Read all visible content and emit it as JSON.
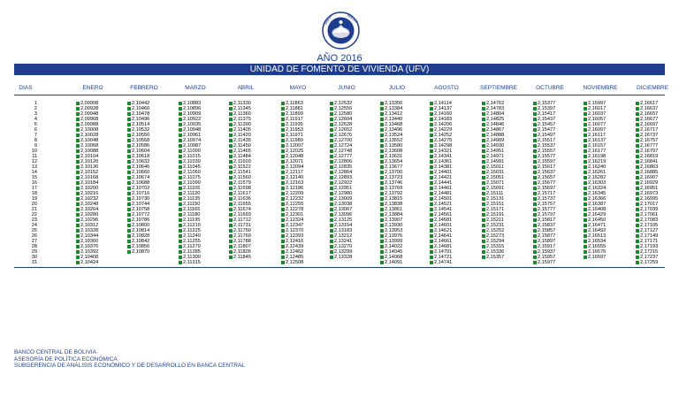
{
  "seal_text": "BANCO CENTRAL DE BOLIVIA",
  "year_title": "AÑO 2016",
  "banner_title": "UNIDAD DE FOMENTO DE VIVIENDA (UFV)",
  "header": [
    "DIAS",
    "ENERO",
    "FEBRERO",
    "MARZO",
    "ABRIL",
    "MAYO",
    "JUNIO",
    "JULIO",
    "AGOSTO",
    "SEPTIEMBRE",
    "OCTUBRE",
    "NOVIEMBRE",
    "DICIEMBRE"
  ],
  "rows": [
    [
      "1",
      "2,09908",
      "2,10442",
      "2,10883",
      "2,11330",
      "2,11863",
      "2,12532",
      "2,13356",
      "2,14114",
      "2,14762",
      "2,15377",
      "2,15997",
      "2,16617"
    ],
    [
      "2",
      "2,09928",
      "2,10460",
      "2,10896",
      "2,11345",
      "2,11881",
      "2,12556",
      "2,13384",
      "2,14137",
      "2,14783",
      "2,15397",
      "2,16017",
      "2,16637"
    ],
    [
      "3",
      "2,09948",
      "2,10478",
      "2,10909",
      "2,11360",
      "2,11899",
      "2,12580",
      "2,13412",
      "2,14160",
      "2,14804",
      "2,15417",
      "2,16037",
      "2,16657"
    ],
    [
      "4",
      "2,09968",
      "2,10496",
      "2,10922",
      "2,11375",
      "2,11917",
      "2,12604",
      "2,13440",
      "2,14183",
      "2,14825",
      "2,15437",
      "2,16057",
      "2,16677"
    ],
    [
      "5",
      "2,09988",
      "2,10514",
      "2,10935",
      "2,11390",
      "2,11935",
      "2,12628",
      "2,13468",
      "2,14206",
      "2,14846",
      "2,15457",
      "2,16077",
      "2,16697"
    ],
    [
      "6",
      "2,10008",
      "2,10532",
      "2,10948",
      "2,11405",
      "2,11953",
      "2,12652",
      "2,13496",
      "2,14229",
      "2,14867",
      "2,15477",
      "2,16097",
      "2,16717"
    ],
    [
      "7",
      "2,10028",
      "2,10550",
      "2,10961",
      "2,11420",
      "2,11971",
      "2,12676",
      "2,13524",
      "2,14252",
      "2,14888",
      "2,15497",
      "2,16117",
      "2,16737"
    ],
    [
      "8",
      "2,10048",
      "2,10568",
      "2,10974",
      "2,11435",
      "2,11989",
      "2,12700",
      "2,13552",
      "2,14275",
      "2,14909",
      "2,15517",
      "2,16137",
      "2,16757"
    ],
    [
      "9",
      "2,10068",
      "2,10586",
      "2,10987",
      "2,11450",
      "2,12007",
      "2,12724",
      "2,13580",
      "2,14298",
      "2,14930",
      "2,15537",
      "2,16157",
      "2,16777"
    ],
    [
      "10",
      "2,10088",
      "2,10604",
      "2,11000",
      "2,11465",
      "2,12025",
      "2,12748",
      "2,13608",
      "2,14321",
      "2,14951",
      "2,15557",
      "2,16177",
      "2,16797"
    ],
    [
      "11",
      "2,10104",
      "2,10618",
      "2,11015",
      "2,11484",
      "2,12048",
      "2,12777",
      "2,13631",
      "2,14341",
      "2,14971",
      "2,15577",
      "2,16198",
      "2,16819"
    ],
    [
      "12",
      "2,10120",
      "2,10632",
      "2,11030",
      "2,11503",
      "2,12071",
      "2,12806",
      "2,13654",
      "2,14361",
      "2,14991",
      "2,15597",
      "2,16219",
      "2,16841"
    ],
    [
      "13",
      "2,10136",
      "2,10646",
      "2,11045",
      "2,11522",
      "2,12094",
      "2,12835",
      "2,13677",
      "2,14381",
      "2,15011",
      "2,15617",
      "2,16240",
      "2,16863"
    ],
    [
      "14",
      "2,10152",
      "2,10660",
      "2,11060",
      "2,11541",
      "2,12117",
      "2,12864",
      "2,13700",
      "2,14401",
      "2,15031",
      "2,15637",
      "2,16261",
      "2,16885"
    ],
    [
      "15",
      "2,10168",
      "2,10674",
      "2,11075",
      "2,11560",
      "2,12140",
      "2,12893",
      "2,13723",
      "2,14421",
      "2,15051",
      "2,15657",
      "2,16282",
      "2,16907"
    ],
    [
      "16",
      "2,10184",
      "2,10688",
      "2,11090",
      "2,11579",
      "2,12163",
      "2,12922",
      "2,13746",
      "2,14441",
      "2,15071",
      "2,15677",
      "2,16303",
      "2,16929"
    ],
    [
      "17",
      "2,10200",
      "2,10702",
      "2,11105",
      "2,11598",
      "2,12186",
      "2,12951",
      "2,13769",
      "2,14461",
      "2,15091",
      "2,15697",
      "2,16324",
      "2,16951"
    ],
    [
      "18",
      "2,10216",
      "2,10716",
      "2,11120",
      "2,11617",
      "2,12209",
      "2,12980",
      "2,13792",
      "2,14481",
      "2,15111",
      "2,15717",
      "2,16345",
      "2,16973"
    ],
    [
      "19",
      "2,10232",
      "2,10730",
      "2,11135",
      "2,11636",
      "2,12232",
      "2,13009",
      "2,13815",
      "2,14501",
      "2,15131",
      "2,15737",
      "2,16366",
      "2,16995"
    ],
    [
      "20",
      "2,10248",
      "2,10744",
      "2,11150",
      "2,11655",
      "2,12255",
      "2,13038",
      "2,13838",
      "2,14521",
      "2,15151",
      "2,15757",
      "2,16387",
      "2,17017"
    ],
    [
      "21",
      "2,10264",
      "2,10758",
      "2,11165",
      "2,11674",
      "2,12278",
      "2,13067",
      "2,13861",
      "2,14541",
      "2,15171",
      "2,15777",
      "2,16408",
      "2,17039"
    ],
    [
      "22",
      "2,10280",
      "2,10772",
      "2,11180",
      "2,11693",
      "2,12301",
      "2,13096",
      "2,13884",
      "2,14561",
      "2,15191",
      "2,15797",
      "2,16429",
      "2,17061"
    ],
    [
      "23",
      "2,10296",
      "2,10786",
      "2,11195",
      "2,11712",
      "2,12324",
      "2,13125",
      "2,13907",
      "2,14581",
      "2,15211",
      "2,15817",
      "2,16450",
      "2,17083"
    ],
    [
      "24",
      "2,10312",
      "2,10800",
      "2,11210",
      "2,11731",
      "2,12347",
      "2,13154",
      "2,13930",
      "2,14601",
      "2,15231",
      "2,15837",
      "2,16471",
      "2,17105"
    ],
    [
      "25",
      "2,10328",
      "2,10814",
      "2,11225",
      "2,11750",
      "2,12370",
      "2,13183",
      "2,13953",
      "2,14621",
      "2,15252",
      "2,15857",
      "2,16492",
      "2,17127"
    ],
    [
      "26",
      "2,10344",
      "2,10828",
      "2,11240",
      "2,11769",
      "2,12393",
      "2,13212",
      "2,13976",
      "2,14641",
      "2,15273",
      "2,15877",
      "2,16513",
      "2,17149"
    ],
    [
      "27",
      "2,10360",
      "2,10842",
      "2,11255",
      "2,11788",
      "2,12416",
      "2,13241",
      "2,13999",
      "2,14661",
      "2,15294",
      "2,15897",
      "2,16534",
      "2,17171"
    ],
    [
      "28",
      "2,10376",
      "2,10856",
      "2,11270",
      "2,11807",
      "2,12439",
      "2,13270",
      "2,14022",
      "2,14681",
      "2,15315",
      "2,15917",
      "2,16555",
      "2,17193"
    ],
    [
      "29",
      "2,10392",
      "2,10870",
      "2,11285",
      "2,11826",
      "2,12462",
      "2,13299",
      "2,14045",
      "2,14701",
      "2,15336",
      "2,15937",
      "2,16576",
      "2,17215"
    ],
    [
      "30",
      "2,10408",
      "",
      "2,11300",
      "2,11845",
      "2,12485",
      "2,13328",
      "2,14068",
      "2,14721",
      "2,15357",
      "2,15957",
      "2,16597",
      "2,17237"
    ],
    [
      "31",
      "2,10424",
      "",
      "2,11315",
      "",
      "2,12508",
      "",
      "2,14091",
      "2,14741",
      "",
      "2,15977",
      "",
      "2,17259"
    ]
  ],
  "footer": [
    "BANCO CENTRAL DE BOLIVIA",
    "ASESORÍA DE POLÍTICA ECONÓMICA",
    "SUBGERENCIA DE ANÁLISIS ECONÓMICO Y DE DESARROLLO EN BANCA CENTRAL"
  ],
  "colors": {
    "brand_blue": "#1e3d8e",
    "value_marker_green": "#1b8a2a"
  }
}
